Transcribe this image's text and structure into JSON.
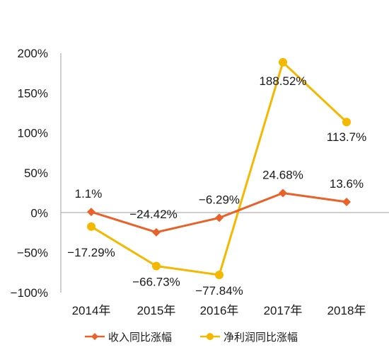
{
  "chart_data": {
    "type": "line",
    "categories": [
      "2014年",
      "2015年",
      "2016年",
      "2017年",
      "2018年"
    ],
    "ylim": [
      -100,
      200
    ],
    "yticks": [
      "200%",
      "150%",
      "100%",
      "50%",
      "0%",
      "−50%",
      "−100%"
    ],
    "ytick_values": [
      200,
      150,
      100,
      50,
      0,
      -50,
      -100
    ],
    "grid": false,
    "legend_position": "bottom",
    "series": [
      {
        "name": "收入同比涨幅",
        "values": [
          1.1,
          -24.42,
          -6.29,
          24.68,
          13.6
        ],
        "labels": [
          "1.1%",
          "−24.42%",
          "−6.29%",
          "24.68%",
          "13.6%"
        ],
        "color": "#e8622a",
        "marker": "diamond"
      },
      {
        "name": "净利润同比涨幅",
        "values": [
          -17.29,
          -66.73,
          -77.84,
          188.52,
          113.7
        ],
        "labels": [
          "−17.29%",
          "−66.73%",
          "−77.84%",
          "188.52%",
          "113.7%"
        ],
        "color": "#f5b800",
        "marker": "circle"
      }
    ]
  }
}
